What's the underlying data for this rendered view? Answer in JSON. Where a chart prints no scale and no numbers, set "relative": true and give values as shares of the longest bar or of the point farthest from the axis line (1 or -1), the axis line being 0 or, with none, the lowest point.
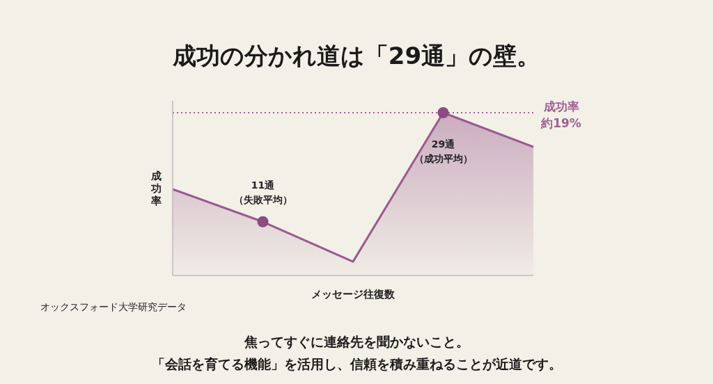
{
  "chart_data": {
    "type": "area",
    "title": "成功の分かれ道は「29通」の壁。",
    "xlabel": "メッセージ往復数",
    "ylabel": "成功率",
    "relative": true,
    "categories": [
      null,
      null,
      null,
      null,
      null
    ],
    "series": [
      {
        "color": "#9a5a8e",
        "values": [
          0.53,
          0.33,
          0.085,
          1,
          0.79
        ],
        "marker": "none"
      }
    ],
    "ref_lines": [
      {
        "axis": "y",
        "value": 1,
        "label": "成功率約19%",
        "color": "#a0608f",
        "line_style": "dotted"
      }
    ],
    "annotations": [
      {
        "text": "11通（失敗平均）",
        "y": 0.33
      },
      {
        "text": "29通（成功平均）",
        "y": 1
      },
      "オックスフォード大学研究データ",
      "焦ってすぐに連絡先を聞かないこと。",
      "「会話を育てる機能」を活用し、信頼を積み重ねることが近道です。"
    ]
  }
}
